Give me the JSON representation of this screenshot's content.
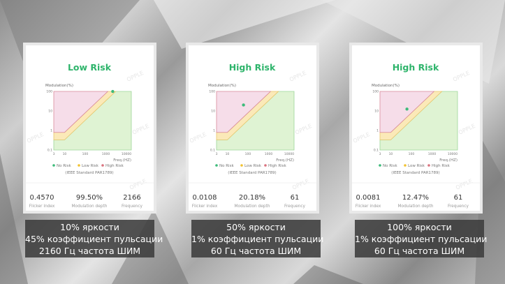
{
  "colors": {
    "title": "#2eb46b",
    "no_risk": "#dff3d3",
    "low_risk": "#fbe9b8",
    "high_risk": "#f6dde9",
    "dot": "#3dbb7a",
    "no_risk_line": "#9dd69a",
    "low_risk_line": "#e9c66b",
    "high_risk_line": "#d98a9a"
  },
  "watermark": "OPPLE",
  "chart_common": {
    "ylabel": "Modulation(%)",
    "xlabel": "Freq.(HZ)",
    "x_ticks": [
      "3",
      "10",
      "100",
      "1000",
      "10000"
    ],
    "y_ticks": [
      "0.1",
      "1",
      "10",
      "100"
    ],
    "legend": [
      "No Risk",
      "Low Risk",
      "High Risk"
    ],
    "standard": "(IEEE Standard PAR1789)"
  },
  "cards": [
    {
      "title": "Low Risk",
      "stats": [
        {
          "value": "0.4570",
          "label": "Flicker Index"
        },
        {
          "value": "99.50%",
          "label": "Modulation depth"
        },
        {
          "value": "2166",
          "label": "Frequency"
        }
      ],
      "point": {
        "freq": 2166,
        "modulation": 99.5
      },
      "caption": [
        "10% яркости",
        "45% коэффициент пульсации",
        "2160 Гц частота ШИМ"
      ]
    },
    {
      "title": "High Risk",
      "stats": [
        {
          "value": "0.0108",
          "label": "Flicker index"
        },
        {
          "value": "20.18%",
          "label": "Modulation depth"
        },
        {
          "value": "61",
          "label": "Frequency"
        }
      ],
      "point": {
        "freq": 61,
        "modulation": 20.18
      },
      "caption": [
        "50% яркости",
        "1% коэффициент пульсации",
        "60 Гц частота ШИМ"
      ]
    },
    {
      "title": "High Risk",
      "stats": [
        {
          "value": "0.0081",
          "label": "Flicker index"
        },
        {
          "value": "12.47%",
          "label": "Modulation depth"
        },
        {
          "value": "61",
          "label": "Frequency"
        }
      ],
      "point": {
        "freq": 61,
        "modulation": 12.47
      },
      "caption": [
        "100% яркости",
        "1% коэффициент пульсации",
        "60 Гц частота ШИМ"
      ]
    }
  ]
}
